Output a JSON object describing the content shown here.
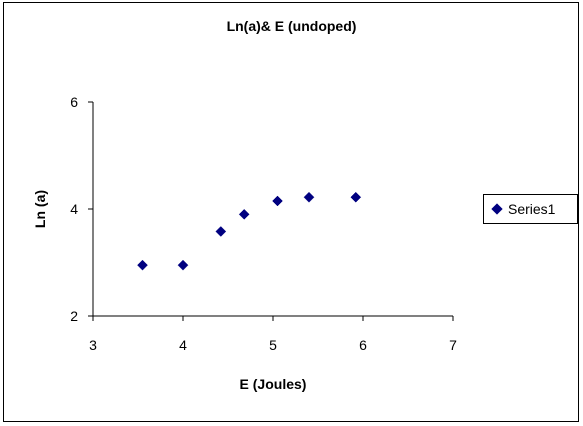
{
  "chart_data": {
    "type": "scatter",
    "title": "Ln(a)& E (undoped)",
    "xlabel": "E (Joules)",
    "ylabel": "Ln (a)",
    "xlim": [
      3,
      7
    ],
    "ylim": [
      2,
      6
    ],
    "xticks": [
      3,
      4,
      5,
      6,
      7
    ],
    "yticks": [
      2,
      4,
      6
    ],
    "grid": false,
    "legend_position": "right",
    "series": [
      {
        "name": "Series1",
        "color": "#000080",
        "marker": "diamond",
        "x": [
          3.55,
          4.0,
          4.42,
          4.68,
          5.05,
          5.4,
          5.92
        ],
        "y": [
          2.95,
          2.95,
          3.58,
          3.9,
          4.15,
          4.22,
          4.22
        ]
      }
    ]
  }
}
